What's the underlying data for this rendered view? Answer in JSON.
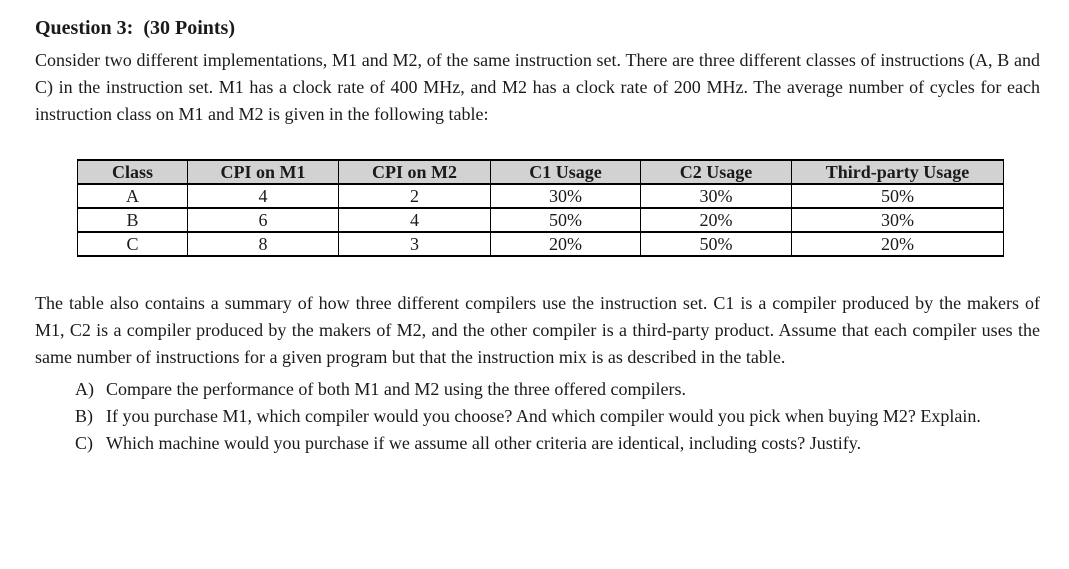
{
  "doc": {
    "title": "Question 3:  (30 Points)",
    "intro": "Consider two different implementations, M1 and M2, of the same instruction set. There are three different classes of instructions (A, B and C) in the instruction set. M1 has a clock rate of 400 MHz, and M2 has a clock rate of 200 MHz. The average number of cycles for each instruction class on M1 and M2 is given in the following table:",
    "table": {
      "headers": [
        "Class",
        "CPI on M1",
        "CPI on M2",
        "C1 Usage",
        "C2 Usage",
        "Third-party Usage"
      ],
      "rows": [
        [
          "A",
          "4",
          "2",
          "30%",
          "30%",
          "50%"
        ],
        [
          "B",
          "6",
          "4",
          "50%",
          "20%",
          "30%"
        ],
        [
          "C",
          "8",
          "3",
          "20%",
          "50%",
          "20%"
        ]
      ],
      "header_bg": "#d2d2d2",
      "border_color": "#000000"
    },
    "body": "The table also contains a summary of how three different compilers use the instruction set. C1 is a compiler produced by the makers of M1, C2 is a compiler produced by the makers of M2, and the other compiler is a third-party product. Assume that each compiler uses the same number of instructions for a given program but that the instruction mix is as described in the table.",
    "questions": [
      {
        "label": "A)",
        "text": "Compare the performance of both M1 and M2 using the three offered compilers."
      },
      {
        "label": "B)",
        "text": "If you purchase M1, which compiler would you choose? And which compiler would you pick when buying M2? Explain."
      },
      {
        "label": "C)",
        "text": "Which machine would you purchase if we assume all other criteria are identical, including costs? Justify."
      }
    ]
  }
}
